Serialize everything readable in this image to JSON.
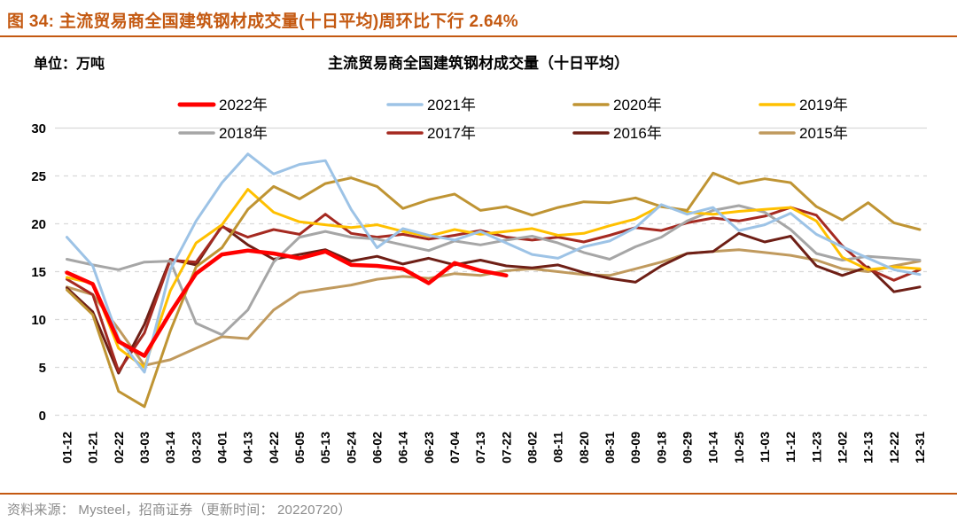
{
  "figure": {
    "heading": "图 34:  主流贸易商全国建筑钢材成交量(十日平均)周环比下行 2.64%",
    "unit_label": "单位：万吨",
    "chart_title": "主流贸易商全国建筑钢材成交量（十日平均）",
    "source": "资料来源：  Mysteel，招商证券（更新时间：  20220720）"
  },
  "colors": {
    "accent": "#C45911",
    "grid": "#D9D9D9",
    "axis_text": "#000000",
    "source_text": "#8C8C8C"
  },
  "chart_data": {
    "type": "line",
    "title": "主流贸易商全国建筑钢材成交量（十日平均）",
    "ylabel": "万吨",
    "xlabel": "",
    "ylim": [
      0,
      30
    ],
    "yticks": [
      0,
      5,
      10,
      15,
      20,
      25,
      30
    ],
    "grid": "horizontal-dashed",
    "legend_position": "top",
    "x_tick_labels": [
      "01-12",
      "01-21",
      "02-22",
      "03-03",
      "03-14",
      "03-23",
      "04-01",
      "04-13",
      "04-22",
      "05-05",
      "05-13",
      "05-24",
      "06-02",
      "06-14",
      "06-23",
      "07-04",
      "07-13",
      "07-22",
      "08-02",
      "08-11",
      "08-20",
      "08-31",
      "09-09",
      "09-18",
      "09-29",
      "10-14",
      "10-25",
      "11-03",
      "11-12",
      "11-23",
      "12-02",
      "12-13",
      "12-22",
      "12-31"
    ],
    "series": [
      {
        "name": "2022年",
        "color": "#FF0000",
        "width": 4.5,
        "values": [
          14.9,
          13.7,
          7.7,
          6.2,
          10.7,
          14.8,
          16.8,
          17.2,
          16.9,
          16.4,
          17.1,
          15.7,
          15.6,
          15.3,
          13.8,
          15.9,
          15.1,
          14.6,
          null,
          null,
          null,
          null,
          null,
          null,
          null,
          null,
          null,
          null,
          null,
          null,
          null,
          null,
          null,
          null
        ]
      },
      {
        "name": "2021年",
        "color": "#9DC3E6",
        "width": 3,
        "values": [
          18.6,
          15.6,
          8.0,
          4.5,
          15.2,
          20.3,
          24.3,
          27.3,
          25.2,
          26.2,
          26.6,
          21.5,
          17.5,
          19.5,
          18.8,
          18.3,
          19.2,
          18.0,
          16.8,
          16.4,
          17.6,
          18.2,
          19.6,
          22.0,
          21.0,
          21.7,
          19.3,
          19.9,
          21.1,
          18.9,
          17.6,
          16.4,
          15.2,
          14.7
        ]
      },
      {
        "name": "2020年",
        "color": "#BF9433",
        "width": 3,
        "values": [
          13.1,
          10.5,
          2.5,
          0.9,
          8.8,
          15.5,
          17.5,
          21.5,
          23.9,
          22.6,
          24.2,
          24.8,
          23.9,
          21.6,
          22.5,
          23.1,
          21.4,
          21.8,
          20.9,
          21.7,
          22.3,
          22.2,
          22.7,
          21.8,
          21.4,
          25.3,
          24.2,
          24.7,
          24.3,
          21.8,
          20.4,
          22.2,
          20.1,
          19.4
        ]
      },
      {
        "name": "2019年",
        "color": "#FFC000",
        "width": 3,
        "values": [
          14.4,
          13.8,
          7.0,
          5.0,
          13.0,
          18.0,
          19.9,
          23.6,
          21.2,
          20.2,
          19.9,
          19.6,
          19.9,
          19.2,
          18.7,
          19.4,
          18.9,
          19.2,
          19.5,
          18.8,
          19.0,
          19.8,
          20.5,
          21.9,
          21.2,
          21.0,
          21.3,
          21.5,
          21.7,
          20.3,
          16.5,
          15.2,
          15.5,
          15.3
        ]
      },
      {
        "name": "2018年",
        "color": "#A6A6A6",
        "width": 3,
        "values": [
          16.3,
          15.7,
          15.2,
          16.0,
          16.1,
          9.6,
          8.4,
          11.0,
          16.0,
          18.6,
          19.2,
          18.6,
          18.4,
          17.8,
          17.2,
          18.2,
          17.8,
          18.3,
          18.7,
          18.0,
          17.0,
          16.3,
          17.6,
          18.6,
          20.3,
          21.4,
          21.9,
          21.2,
          19.4,
          16.9,
          16.2,
          16.6,
          16.4,
          16.2
        ]
      },
      {
        "name": "2017年",
        "color": "#A52A21",
        "width": 3,
        "values": [
          14.2,
          12.6,
          4.6,
          8.6,
          16.2,
          16.0,
          19.7,
          18.6,
          19.4,
          18.9,
          21.0,
          19.0,
          18.6,
          18.9,
          18.4,
          18.8,
          19.3,
          18.6,
          18.3,
          18.6,
          18.1,
          18.8,
          19.6,
          19.3,
          20.1,
          20.6,
          20.3,
          20.8,
          21.7,
          20.9,
          17.7,
          15.3,
          14.1,
          15.2
        ]
      },
      {
        "name": "2016年",
        "color": "#6E1F16",
        "width": 3,
        "values": [
          13.3,
          10.8,
          4.4,
          9.5,
          16.3,
          15.7,
          19.8,
          17.8,
          16.3,
          16.8,
          17.3,
          16.1,
          16.6,
          15.8,
          16.4,
          15.7,
          16.2,
          15.6,
          15.4,
          15.7,
          14.9,
          14.3,
          13.9,
          15.6,
          16.9,
          17.1,
          19.0,
          18.1,
          18.7,
          15.6,
          14.6,
          15.5,
          12.9,
          13.4
        ]
      },
      {
        "name": "2015年",
        "color": "#C09A5E",
        "width": 3,
        "values": [
          13.4,
          12.6,
          9.0,
          5.2,
          5.8,
          7.0,
          8.2,
          8.0,
          11.0,
          12.8,
          13.2,
          13.6,
          14.2,
          14.5,
          14.3,
          14.8,
          14.6,
          15.1,
          15.3,
          15.0,
          14.7,
          14.6,
          15.3,
          16.0,
          16.9,
          17.1,
          17.3,
          17.0,
          16.7,
          16.2,
          15.3,
          15.0,
          15.6,
          16.1
        ]
      }
    ]
  }
}
